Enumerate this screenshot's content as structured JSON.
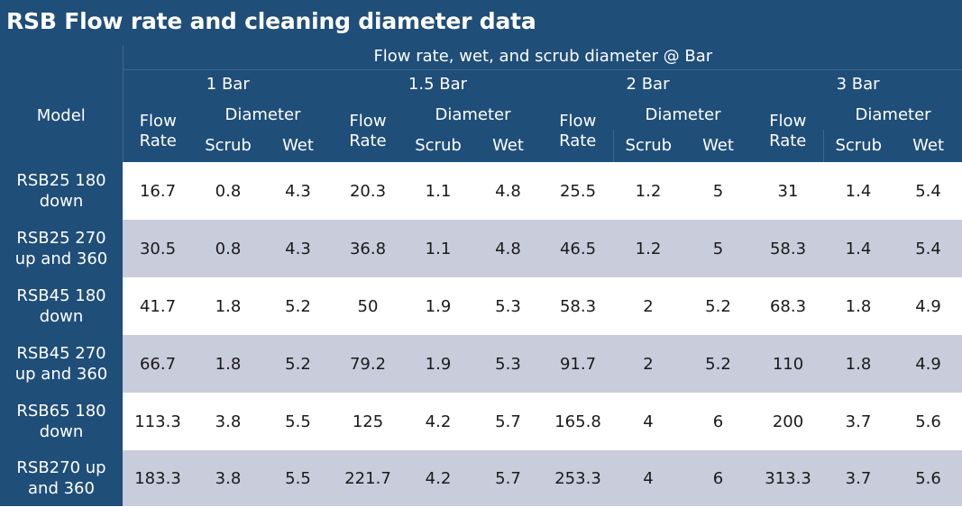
{
  "title": "RSB Flow rate and cleaning diameter data",
  "chart_data": {
    "type": "table",
    "title": "RSB Flow rate and cleaning diameter data",
    "super_header": "Flow rate, wet, and scrub diameter @ Bar",
    "model_header": "Model",
    "pressures": [
      "1 Bar",
      "1.5 Bar",
      "2 Bar",
      "3 Bar"
    ],
    "flow_rate_label": [
      "Flow",
      "Rate"
    ],
    "diameter_label": "Diameter",
    "scrub_label": "Scrub",
    "wet_label": "Wet",
    "rows": [
      {
        "model": [
          "RSB25 180",
          "down"
        ],
        "values": [
          "16.7",
          "0.8",
          "4.3",
          "20.3",
          "1.1",
          "4.8",
          "25.5",
          "1.2",
          "5",
          "31",
          "1.4",
          "5.4"
        ]
      },
      {
        "model": [
          "RSB25 270",
          "up and 360"
        ],
        "values": [
          "30.5",
          "0.8",
          "4.3",
          "36.8",
          "1.1",
          "4.8",
          "46.5",
          "1.2",
          "5",
          "58.3",
          "1.4",
          "5.4"
        ]
      },
      {
        "model": [
          "RSB45 180",
          "down"
        ],
        "values": [
          "41.7",
          "1.8",
          "5.2",
          "50",
          "1.9",
          "5.3",
          "58.3",
          "2",
          "5.2",
          "68.3",
          "1.8",
          "4.9"
        ]
      },
      {
        "model": [
          "RSB45 270",
          "up and 360"
        ],
        "values": [
          "66.7",
          "1.8",
          "5.2",
          "79.2",
          "1.9",
          "5.3",
          "91.7",
          "2",
          "5.2",
          "110",
          "1.8",
          "4.9"
        ]
      },
      {
        "model": [
          "RSB65 180",
          "down"
        ],
        "values": [
          "113.3",
          "3.8",
          "5.5",
          "125",
          "4.2",
          "5.7",
          "165.8",
          "4",
          "6",
          "200",
          "3.7",
          "5.6"
        ]
      },
      {
        "model": [
          "RSB270 up",
          "and 360"
        ],
        "values": [
          "183.3",
          "3.8",
          "5.5",
          "221.7",
          "4.2",
          "5.7",
          "253.3",
          "4",
          "6",
          "313.3",
          "3.7",
          "5.6"
        ]
      }
    ]
  },
  "colors": {
    "header_bg": "#1f4e79",
    "header_text": "#ffffff",
    "row_alt_bg": "#c9ccdb",
    "row_bg": "#ffffff"
  }
}
